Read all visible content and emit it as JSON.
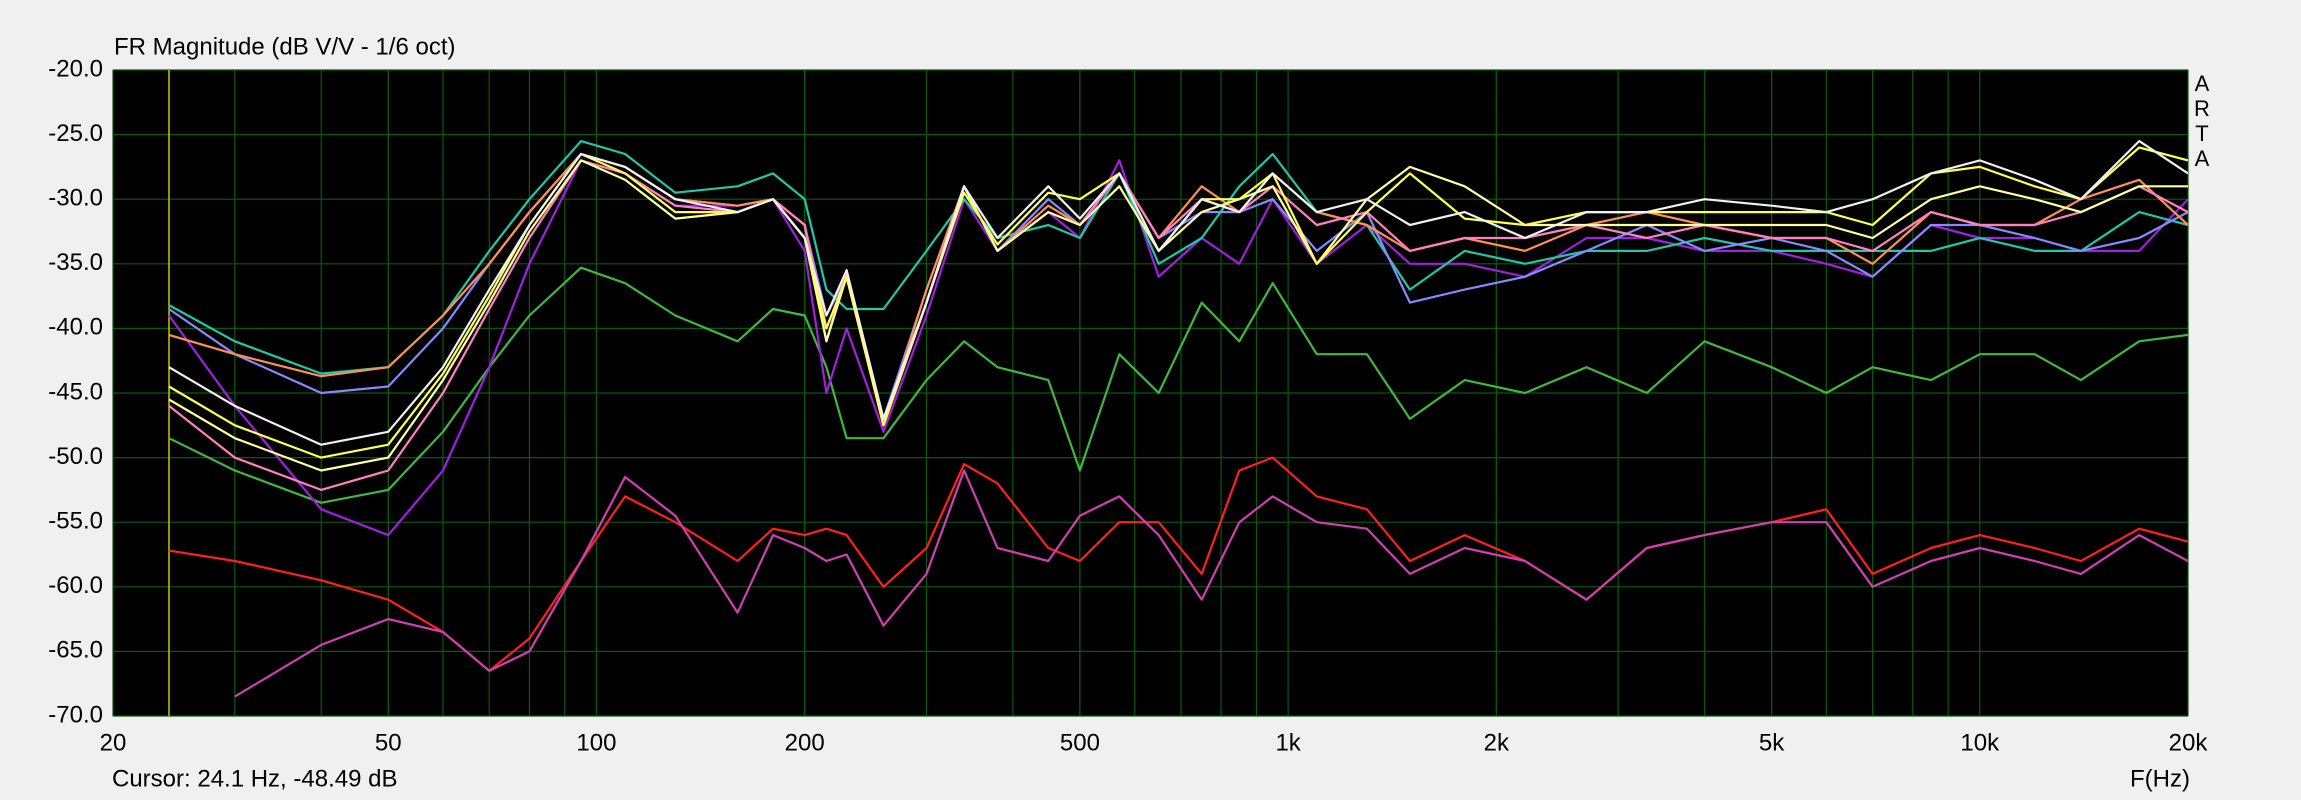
{
  "chart_data": {
    "type": "line",
    "title": "FR Magnitude (dB V/V - 1/6 oct)",
    "x_label": "F(Hz)",
    "side_label": [
      "A",
      "R",
      "T",
      "A"
    ],
    "cursor": {
      "x": 24.1,
      "label": "Cursor: 24.1 Hz, -48.49 dB"
    },
    "log_x": true,
    "grid": true,
    "xlim": [
      20,
      20000
    ],
    "xticks": [
      20,
      50,
      100,
      200,
      500,
      {
        "value": 1000,
        "label": "1k"
      },
      {
        "value": 2000,
        "label": "2k"
      },
      {
        "value": 5000,
        "label": "5k"
      },
      {
        "value": 10000,
        "label": "10k"
      },
      {
        "value": 20000,
        "label": "20k"
      }
    ],
    "ylim": [
      -70,
      -20
    ],
    "yticks": [
      {
        "value": -20,
        "label": "-20.0"
      },
      {
        "value": -25,
        "label": "-25.0"
      },
      {
        "value": -30,
        "label": "-30.0"
      },
      {
        "value": -35,
        "label": "-35.0"
      },
      {
        "value": -40,
        "label": "-40.0"
      },
      {
        "value": -45,
        "label": "-45.0"
      },
      {
        "value": -50,
        "label": "-50.0"
      },
      {
        "value": -55,
        "label": "-55.0"
      },
      {
        "value": -60,
        "label": "-60.0"
      },
      {
        "value": -65,
        "label": "-65.0"
      },
      {
        "value": -70,
        "label": "-70.0"
      }
    ],
    "x": [
      24.1,
      30,
      40,
      50,
      60,
      70,
      80,
      95,
      110,
      130,
      160,
      180,
      200,
      215,
      230,
      260,
      300,
      340,
      380,
      450,
      500,
      570,
      650,
      750,
      850,
      950,
      1100,
      1300,
      1500,
      1800,
      2200,
      2700,
      3300,
      4000,
      5000,
      6000,
      7000,
      8500,
      10000,
      12000,
      14000,
      17000,
      20000
    ],
    "series": [
      {
        "color": "#40b840",
        "values": [
          -48.5,
          -51,
          -53.5,
          -52.5,
          -48,
          -43,
          -39,
          -35.3,
          -36.5,
          -39,
          -41,
          -38.5,
          -39,
          -43,
          -48.5,
          -48.5,
          -44,
          -41,
          -43,
          -44,
          -51,
          -42,
          -45,
          -38,
          -41,
          -36.5,
          -42,
          -42,
          -47,
          -44,
          -45,
          -43,
          -45,
          -41,
          -43,
          -45,
          -43,
          -44,
          -42,
          -42,
          -44,
          -41,
          -40.5
        ]
      },
      {
        "color": "#ff2020",
        "values": [
          -57.2,
          -58,
          -59.5,
          -61,
          -63.5,
          -66.5,
          -64,
          -58,
          -53,
          -55,
          -58,
          -55.5,
          -56,
          -55.5,
          -56,
          -60,
          -57,
          -50.5,
          -52,
          -57,
          -58,
          -55,
          -55,
          -59,
          -51,
          -50,
          -53,
          -54,
          -58,
          -56,
          -58,
          -61,
          -57,
          -56,
          -55,
          -54,
          -59,
          -57,
          -56,
          -57,
          -58,
          -55.5,
          -56.5
        ]
      },
      {
        "color": "#d040b0",
        "values": [
          null,
          -68.5,
          -64.5,
          -62.5,
          -63.5,
          -66.5,
          -65,
          -58,
          -51.5,
          -54.5,
          -62,
          -56,
          -57,
          -58,
          -57.5,
          -63,
          -59,
          -51,
          -57,
          -58,
          -54.5,
          -53,
          -56,
          -61,
          -55,
          -53,
          -55,
          -55.5,
          -59,
          -57,
          -58,
          -61,
          -57,
          -56,
          -55,
          -55,
          -60,
          -58,
          -57,
          -58,
          -59,
          -56,
          -58
        ]
      },
      {
        "color": "#a020e0",
        "values": [
          -39,
          -46,
          -54,
          -56,
          -51,
          -43,
          -35,
          -27,
          -28,
          -30.5,
          -30.5,
          -30,
          -34,
          -45,
          -40,
          -48,
          -39,
          -30,
          -34,
          -31,
          -33,
          -27,
          -36,
          -33,
          -35,
          -30,
          -35,
          -32,
          -35,
          -35,
          -36,
          -33,
          -33,
          -34,
          -34,
          -35,
          -36,
          -32,
          -33,
          -33,
          -34,
          -34,
          -30
        ]
      },
      {
        "color": "#20c8a8",
        "values": [
          -38.2,
          -41,
          -43.5,
          -43,
          -39,
          -34,
          -30,
          -25.5,
          -26.5,
          -29.5,
          -29,
          -28,
          -30,
          -37,
          -38.5,
          -38.5,
          -34,
          -30,
          -33,
          -32,
          -33,
          -28,
          -35,
          -33,
          -29,
          -26.5,
          -31,
          -32,
          -37,
          -34,
          -35,
          -34,
          -34,
          -33,
          -34,
          -34,
          -34,
          -34,
          -33,
          -34,
          -34,
          -31,
          -32
        ]
      },
      {
        "color": "#8888ff",
        "values": [
          -38.5,
          -42,
          -45,
          -44.5,
          -40,
          -35,
          -31,
          -26.5,
          -27.5,
          -30,
          -30.5,
          -30,
          -32,
          -39,
          -36,
          -47,
          -37,
          -29,
          -34,
          -30,
          -32,
          -28,
          -33,
          -31,
          -31,
          -30,
          -34,
          -31,
          -38,
          -37,
          -36,
          -34,
          -32,
          -34,
          -33,
          -34,
          -36,
          -32,
          -32,
          -33,
          -34,
          -33,
          -31
        ]
      },
      {
        "color": "#ff9050",
        "values": [
          -40.5,
          -42,
          -43.7,
          -43,
          -39,
          -35,
          -31,
          -26.5,
          -27.5,
          -30,
          -30.5,
          -30,
          -32,
          -40,
          -36,
          -47.5,
          -37,
          -29,
          -34,
          -30.5,
          -32,
          -28,
          -33,
          -29,
          -31,
          -28,
          -31,
          -32,
          -34,
          -33,
          -34,
          -32,
          -31,
          -32,
          -33,
          -33,
          -35,
          -31,
          -32,
          -32,
          -30,
          -28.5,
          -32
        ]
      },
      {
        "color": "#ff80c0",
        "values": [
          -46,
          -50,
          -52.5,
          -51,
          -45,
          -38.5,
          -33,
          -27,
          -28,
          -30.5,
          -31,
          -30,
          -32,
          -41,
          -35.5,
          -47.5,
          -38,
          -29,
          -34,
          -31,
          -32,
          -28,
          -33,
          -30,
          -31,
          -29,
          -32,
          -31,
          -34,
          -33,
          -33,
          -32,
          -33,
          -32,
          -33,
          -33,
          -34,
          -31,
          -32,
          -32,
          -31,
          -29,
          -31
        ]
      },
      {
        "color": "#ffffa0",
        "values": [
          -45.5,
          -48.5,
          -51,
          -50,
          -44,
          -38,
          -32.5,
          -27,
          -28.5,
          -31.5,
          -31,
          -30,
          -33,
          -41,
          -36,
          -47.5,
          -38,
          -29,
          -34,
          -31,
          -32,
          -29,
          -34,
          -31,
          -30,
          -29,
          -35,
          -30,
          -27.5,
          -29,
          -32,
          -32,
          -32,
          -32,
          -32,
          -32,
          -33,
          -30,
          -29,
          -30,
          -31,
          -29,
          -29
        ]
      },
      {
        "color": "#ffff50",
        "values": [
          -44.5,
          -47.5,
          -50,
          -49,
          -43.5,
          -37.5,
          -32,
          -26.5,
          -28,
          -31,
          -31,
          -30,
          -33,
          -40,
          -36,
          -47.5,
          -38,
          -29.5,
          -33.5,
          -29.5,
          -30,
          -28,
          -34,
          -30,
          -30,
          -28,
          -35,
          -31,
          -28,
          -31.5,
          -32,
          -31,
          -31,
          -31,
          -31,
          -31,
          -32,
          -28,
          -27.5,
          -29,
          -30,
          -26,
          -27
        ]
      },
      {
        "color": "#f0f0f0",
        "values": [
          -43,
          -46,
          -49,
          -48,
          -43,
          -37,
          -32,
          -26.5,
          -27.5,
          -30,
          -31,
          -30,
          -33,
          -39,
          -35.5,
          -47,
          -38,
          -29,
          -33,
          -29,
          -31.5,
          -28,
          -34,
          -30,
          -31,
          -28,
          -31,
          -30,
          -32,
          -31,
          -33,
          -31,
          -31,
          -30,
          -30.5,
          -31,
          -30,
          -28,
          -27,
          -28.5,
          -30,
          -25.5,
          -28
        ]
      }
    ]
  }
}
